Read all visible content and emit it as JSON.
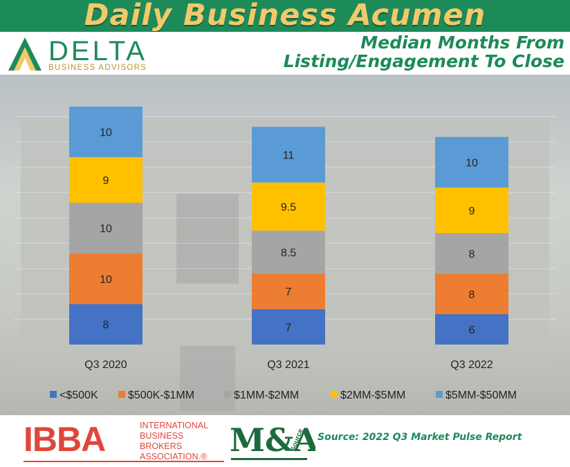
{
  "header": {
    "banner_title": "Daily Business Acumen",
    "subtitle_line1": "Median Months From",
    "subtitle_line2": "Listing/Engagement To Close"
  },
  "logo": {
    "name": "DELTA",
    "tagline": "BUSINESS ADVISORS"
  },
  "footer": {
    "ibba_letters": "IBBA",
    "ibba_line1": "INTERNATIONAL",
    "ibba_line2": "BUSINESS BROKERS",
    "ibba_line3": "ASSOCIATION.®",
    "ma_text": "M&A",
    "ma_source": "Source",
    "source_text": "Source: 2022 Q3 Market Pulse Report"
  },
  "colors": {
    "brand_green": "#1d8a5a",
    "banner_gold": "#f2c96a",
    "ibba_red": "#e0463a"
  },
  "chart_data": {
    "type": "bar",
    "stacked": true,
    "categories": [
      "Q3 2020",
      "Q3 2021",
      "Q3 2022"
    ],
    "series": [
      {
        "name": "<$500K",
        "color": "#4472c4",
        "values": [
          8,
          7,
          6
        ]
      },
      {
        "name": "$500K-$1MM",
        "color": "#ed7d31",
        "values": [
          10,
          7,
          8
        ]
      },
      {
        "name": "$1MM-$2MM",
        "color": "#a5a5a5",
        "values": [
          10,
          8.5,
          8
        ]
      },
      {
        "name": "$2MM-$5MM",
        "color": "#ffc000",
        "values": [
          9,
          9.5,
          9
        ]
      },
      {
        "name": "$5MM-$50MM",
        "color": "#5b9bd5",
        "values": [
          10,
          11,
          10
        ]
      }
    ],
    "legend_position": "bottom",
    "ylim": [
      0,
      47
    ]
  }
}
